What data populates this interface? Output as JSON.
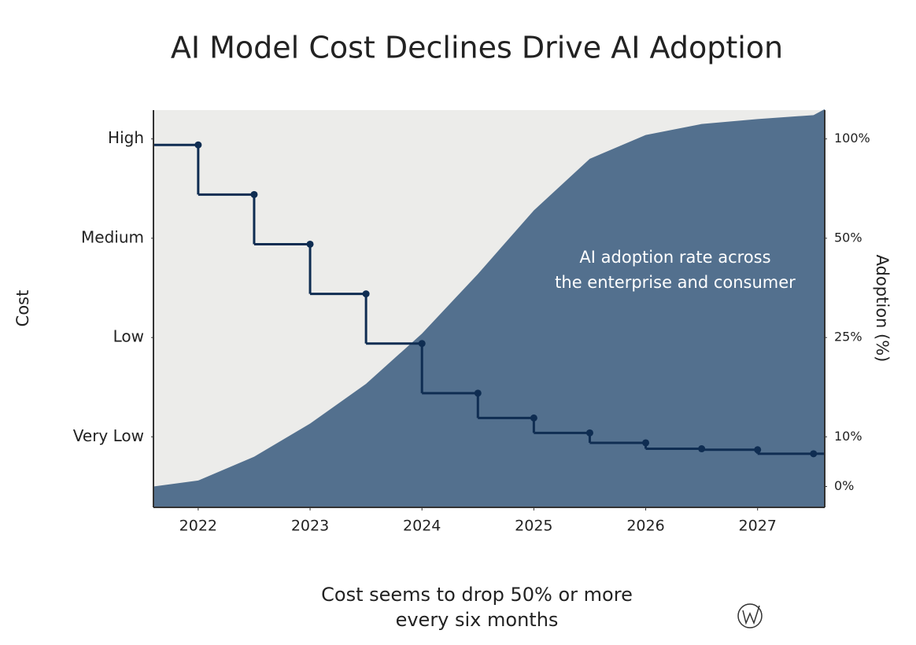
{
  "chart_data": {
    "type": "line",
    "title": "AI Model Cost Declines Drive AI Adoption",
    "caption": [
      "Cost seems to drop 50% or more",
      "every six months"
    ],
    "annotation": [
      "AI adoption rate across",
      "the enterprise and consumer"
    ],
    "ylabel": "Cost",
    "y2label": "Adoption (%)",
    "xlim": [
      2021.6,
      2027.6
    ],
    "xticks": [
      2022,
      2023,
      2024,
      2025,
      2026,
      2027
    ],
    "ylim": [
      0.29,
      4.29
    ],
    "yticks": [
      {
        "value": 1,
        "label": "Very Low"
      },
      {
        "value": 2,
        "label": "Low"
      },
      {
        "value": 3,
        "label": "Medium"
      },
      {
        "value": 4,
        "label": "High"
      }
    ],
    "y2ticks": [
      {
        "value": 0,
        "label": "0%"
      },
      {
        "value": 10,
        "label": "10%"
      },
      {
        "value": 25,
        "label": "25%"
      },
      {
        "value": 50,
        "label": "50%"
      },
      {
        "value": 100,
        "label": "100%"
      }
    ],
    "y2scale": "piecewise",
    "background": "#ececea",
    "series": [
      {
        "type": "area",
        "axis": "y2",
        "color": "#53708e",
        "x": [
          2021.6,
          2022,
          2022.5,
          2023,
          2023.5,
          2024,
          2024.5,
          2025,
          2025.5,
          2026,
          2026.5,
          2027,
          2027.5,
          2027.6
        ],
        "values": [
          0,
          1.2,
          6,
          12,
          18,
          26,
          41,
          64,
          90,
          102,
          107.5,
          110,
          112,
          115
        ]
      },
      {
        "type": "step",
        "axis": "y",
        "color": "#0f2d52",
        "x": [
          2022,
          2022.5,
          2023,
          2023.5,
          2024,
          2024.5,
          2025,
          2025.5,
          2026,
          2026.5,
          2027,
          2027.5
        ],
        "values": [
          3.94,
          3.44,
          2.94,
          2.44,
          1.94,
          1.44,
          1.19,
          1.04,
          0.94,
          0.88,
          0.87,
          0.83
        ]
      }
    ]
  }
}
